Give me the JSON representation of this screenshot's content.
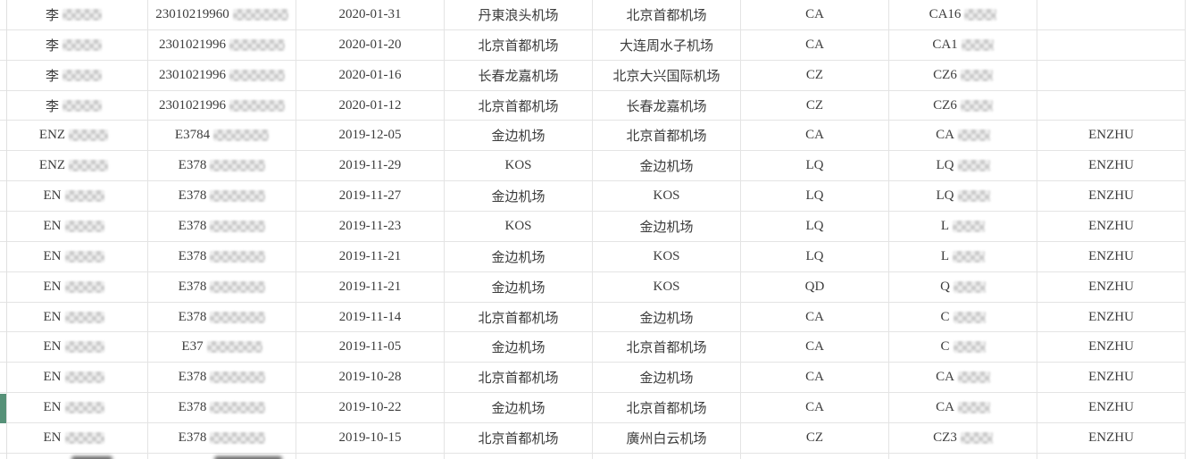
{
  "colors": {
    "background": "#ffffff",
    "grid_border": "#e4e4e4",
    "text": "#3c3c3c",
    "row_highlight_marker": "#569178",
    "redaction_mosaic": "#cfcfcf",
    "bottom_smudge": "#5f5f5f"
  },
  "table": {
    "column_keys": [
      "name",
      "id",
      "date",
      "departure",
      "arrival",
      "airline",
      "flight",
      "tag"
    ],
    "highlighted_row": 14,
    "rows": [
      {
        "name": "李",
        "name_redacted": true,
        "id": "23010219960",
        "id_redacted": true,
        "date": "2020-01-31",
        "departure": "丹東浪头机场",
        "arrival": "北京首都机场",
        "airline": "CA",
        "flight": "CA16",
        "flight_redacted": true,
        "tag": ""
      },
      {
        "name": "李",
        "name_redacted": true,
        "id": "2301021996",
        "id_redacted": true,
        "date": "2020-01-20",
        "departure": "北京首都机场",
        "arrival": "大连周水子机场",
        "airline": "CA",
        "flight": "CA1",
        "flight_redacted": true,
        "tag": ""
      },
      {
        "name": "李",
        "name_redacted": true,
        "id": "2301021996",
        "id_redacted": true,
        "date": "2020-01-16",
        "departure": "长春龙嘉机场",
        "arrival": "北京大兴国际机场",
        "airline": "CZ",
        "flight": "CZ6",
        "flight_redacted": true,
        "tag": ""
      },
      {
        "name": "李",
        "name_redacted": true,
        "id": "2301021996",
        "id_redacted": true,
        "date": "2020-01-12",
        "departure": "北京首都机场",
        "arrival": "长春龙嘉机场",
        "airline": "CZ",
        "flight": "CZ6",
        "flight_redacted": true,
        "tag": ""
      },
      {
        "name": "ENZ",
        "name_redacted": true,
        "id": "E3784",
        "id_redacted": true,
        "date": "2019-12-05",
        "departure": "金边机场",
        "arrival": "北京首都机场",
        "airline": "CA",
        "flight": "CA",
        "flight_redacted": true,
        "tag": "ENZHU"
      },
      {
        "name": "ENZ",
        "name_redacted": true,
        "id": "E378",
        "id_redacted": true,
        "date": "2019-11-29",
        "departure": "KOS",
        "arrival": "金边机场",
        "airline": "LQ",
        "flight": "LQ",
        "flight_redacted": true,
        "tag": "ENZHU"
      },
      {
        "name": "EN",
        "name_redacted": true,
        "id": "E378",
        "id_redacted": true,
        "date": "2019-11-27",
        "departure": "金边机场",
        "arrival": "KOS",
        "airline": "LQ",
        "flight": "LQ",
        "flight_redacted": true,
        "tag": "ENZHU"
      },
      {
        "name": "EN",
        "name_redacted": true,
        "id": "E378",
        "id_redacted": true,
        "date": "2019-11-23",
        "departure": "KOS",
        "arrival": "金边机场",
        "airline": "LQ",
        "flight": "L",
        "flight_redacted": true,
        "tag": "ENZHU"
      },
      {
        "name": "EN",
        "name_redacted": true,
        "id": "E378",
        "id_redacted": true,
        "date": "2019-11-21",
        "departure": "金边机场",
        "arrival": "KOS",
        "airline": "LQ",
        "flight": "L",
        "flight_redacted": true,
        "tag": "ENZHU"
      },
      {
        "name": "EN",
        "name_redacted": true,
        "id": "E378",
        "id_redacted": true,
        "date": "2019-11-21",
        "departure": "金边机场",
        "arrival": "KOS",
        "airline": "QD",
        "flight": "Q",
        "flight_redacted": true,
        "tag": "ENZHU"
      },
      {
        "name": "EN",
        "name_redacted": true,
        "id": "E378",
        "id_redacted": true,
        "date": "2019-11-14",
        "departure": "北京首都机场",
        "arrival": "金边机场",
        "airline": "CA",
        "flight": "C",
        "flight_redacted": true,
        "tag": "ENZHU"
      },
      {
        "name": "EN",
        "name_redacted": true,
        "id": "E37",
        "id_redacted": true,
        "date": "2019-11-05",
        "departure": "金边机场",
        "arrival": "北京首都机场",
        "airline": "CA",
        "flight": "C",
        "flight_redacted": true,
        "tag": "ENZHU"
      },
      {
        "name": "EN",
        "name_redacted": true,
        "id": "E378",
        "id_redacted": true,
        "date": "2019-10-28",
        "departure": "北京首都机场",
        "arrival": "金边机场",
        "airline": "CA",
        "flight": "CA",
        "flight_redacted": true,
        "tag": "ENZHU"
      },
      {
        "name": "EN",
        "name_redacted": true,
        "id": "E378",
        "id_redacted": true,
        "date": "2019-10-22",
        "departure": "金边机场",
        "arrival": "北京首都机场",
        "airline": "CA",
        "flight": "CA",
        "flight_redacted": true,
        "tag": "ENZHU"
      },
      {
        "name": "EN",
        "name_redacted": true,
        "id": "E378",
        "id_redacted": true,
        "date": "2019-10-15",
        "departure": "北京首都机场",
        "arrival": "廣州白云机场",
        "airline": "CZ",
        "flight": "CZ3",
        "flight_redacted": true,
        "tag": "ENZHU"
      }
    ],
    "partial_next_row": {
      "visible": true,
      "smudge_columns": [
        "name",
        "id"
      ]
    }
  }
}
